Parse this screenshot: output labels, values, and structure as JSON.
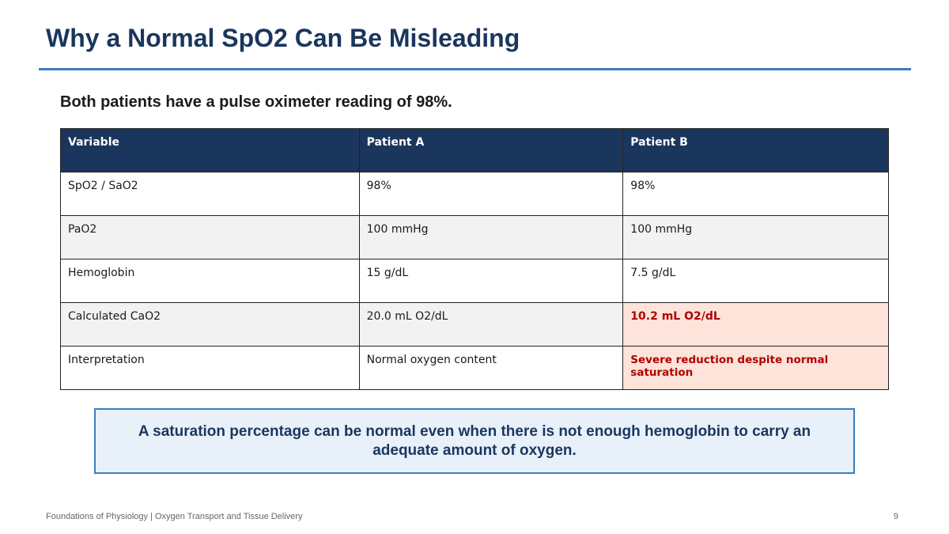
{
  "slide": {
    "title": "Why a Normal SpO2 Can Be Misleading",
    "subtitle": "Both patients have a pulse oximeter reading of 98%."
  },
  "table": {
    "headers": [
      "Variable",
      "Patient A",
      "Patient B"
    ],
    "rows": [
      [
        "SpO2 / SaO2",
        "98%",
        "98%"
      ],
      [
        "PaO2",
        "100 mmHg",
        "100 mmHg"
      ],
      [
        "Hemoglobin",
        "15 g/dL",
        "7.5 g/dL"
      ],
      [
        "Calculated CaO2",
        "20.0 mL O2/dL",
        "10.2 mL O2/dL"
      ],
      [
        "Interpretation",
        "Normal oxygen content",
        "Severe reduction despite normal saturation"
      ]
    ]
  },
  "callout": {
    "text": "A saturation percentage can be normal even when there is not enough hemoglobin to carry an adequate amount of oxygen."
  },
  "footer": {
    "left": "Foundations of Physiology | Oxygen Transport and Tissue Delivery",
    "page_number": "9"
  },
  "colors": {
    "title": "#1b365d",
    "accent_rule": "#3a7dbf",
    "header_bg": "#1b365d",
    "highlight_bg": "#fde3d9",
    "highlight_text": "#b00000",
    "callout_bg": "#e8f1fa"
  }
}
